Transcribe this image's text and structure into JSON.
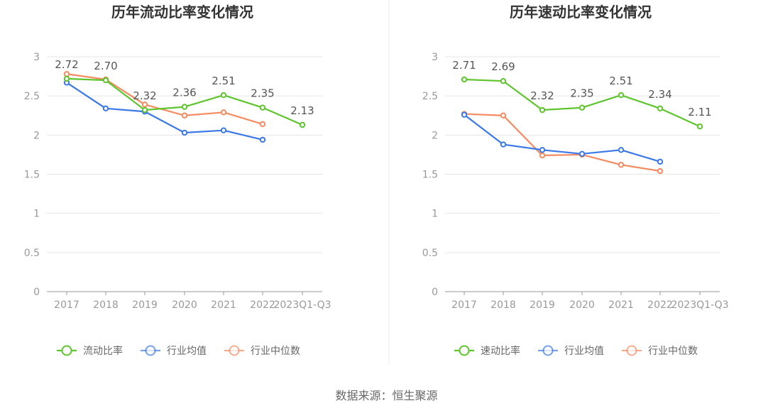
{
  "source": "数据来源：恒生聚源",
  "chart_data": [
    {
      "type": "line",
      "title": "历年流动比率变化情况",
      "categories": [
        "2017",
        "2018",
        "2019",
        "2020",
        "2021",
        "2022",
        "2023Q1-Q3"
      ],
      "ylim": [
        0,
        3
      ],
      "yticks": [
        "0",
        "0.5",
        "1",
        "1.5",
        "2",
        "2.5",
        "3"
      ],
      "series": [
        {
          "name": "流动比率",
          "color": "#5ec52e",
          "values": [
            2.72,
            2.7,
            2.32,
            2.36,
            2.51,
            2.35,
            2.13
          ],
          "labels": [
            "2.72",
            "2.70",
            "2.32",
            "2.36",
            "2.51",
            "2.35",
            "2.13"
          ]
        },
        {
          "name": "行业均值",
          "color": "#3b78e7",
          "values": [
            2.67,
            2.34,
            2.3,
            2.03,
            2.06,
            1.94,
            null
          ]
        },
        {
          "name": "行业中位数",
          "color": "#f58b61",
          "values": [
            2.78,
            2.71,
            2.39,
            2.25,
            2.29,
            2.14,
            null
          ]
        }
      ]
    },
    {
      "type": "line",
      "title": "历年速动比率变化情况",
      "categories": [
        "2017",
        "2018",
        "2019",
        "2020",
        "2021",
        "2022",
        "2023Q1-Q3"
      ],
      "ylim": [
        0,
        3
      ],
      "yticks": [
        "0",
        "0.5",
        "1",
        "1.5",
        "2",
        "2.5",
        "3"
      ],
      "series": [
        {
          "name": "速动比率",
          "color": "#5ec52e",
          "values": [
            2.71,
            2.69,
            2.32,
            2.35,
            2.51,
            2.34,
            2.11
          ],
          "labels": [
            "2.71",
            "2.69",
            "2.32",
            "2.35",
            "2.51",
            "2.34",
            "2.11"
          ]
        },
        {
          "name": "行业均值",
          "color": "#3b78e7",
          "values": [
            2.26,
            1.88,
            1.81,
            1.76,
            1.81,
            1.66,
            null
          ]
        },
        {
          "name": "行业中位数",
          "color": "#f58b61",
          "values": [
            2.27,
            2.25,
            1.74,
            1.75,
            1.62,
            1.54,
            null
          ]
        }
      ]
    }
  ]
}
